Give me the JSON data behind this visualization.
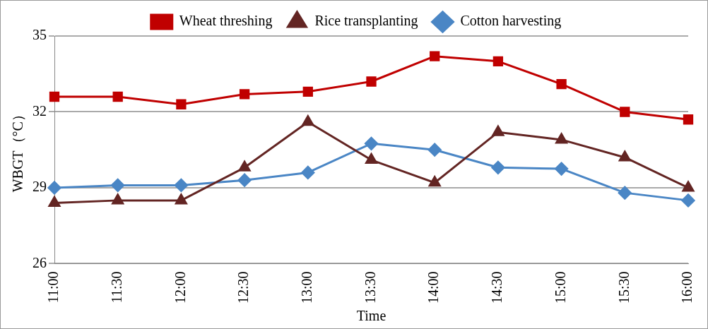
{
  "chart_data": {
    "type": "line",
    "xlabel": "Time",
    "ylabel": "WBGT（°C）",
    "categories": [
      "11:00",
      "11:30",
      "12:00",
      "12:30",
      "13:00",
      "13:30",
      "14:00",
      "14:30",
      "15:00",
      "15:30",
      "16:00"
    ],
    "series": [
      {
        "name": "Wheat threshing",
        "color": "#c00000",
        "marker": "square",
        "values": [
          32.6,
          32.6,
          32.3,
          32.7,
          32.8,
          33.2,
          34.2,
          34.0,
          33.1,
          32.0,
          31.7
        ]
      },
      {
        "name": "Rice transplanting",
        "color": "#632523",
        "marker": "triangle",
        "values": [
          28.4,
          28.5,
          28.5,
          29.8,
          31.6,
          30.1,
          29.2,
          31.2,
          30.9,
          30.2,
          29.0
        ]
      },
      {
        "name": "Cotton harvesting",
        "color": "#4a86c5",
        "marker": "diamond",
        "values": [
          29.0,
          29.1,
          29.1,
          29.3,
          29.6,
          30.75,
          30.5,
          29.8,
          29.75,
          28.8,
          28.5
        ]
      }
    ],
    "ylim": [
      26,
      35
    ],
    "yticks": [
      26,
      29,
      32,
      35
    ],
    "grid": "y",
    "legend": "top",
    "line_style": "solid"
  }
}
